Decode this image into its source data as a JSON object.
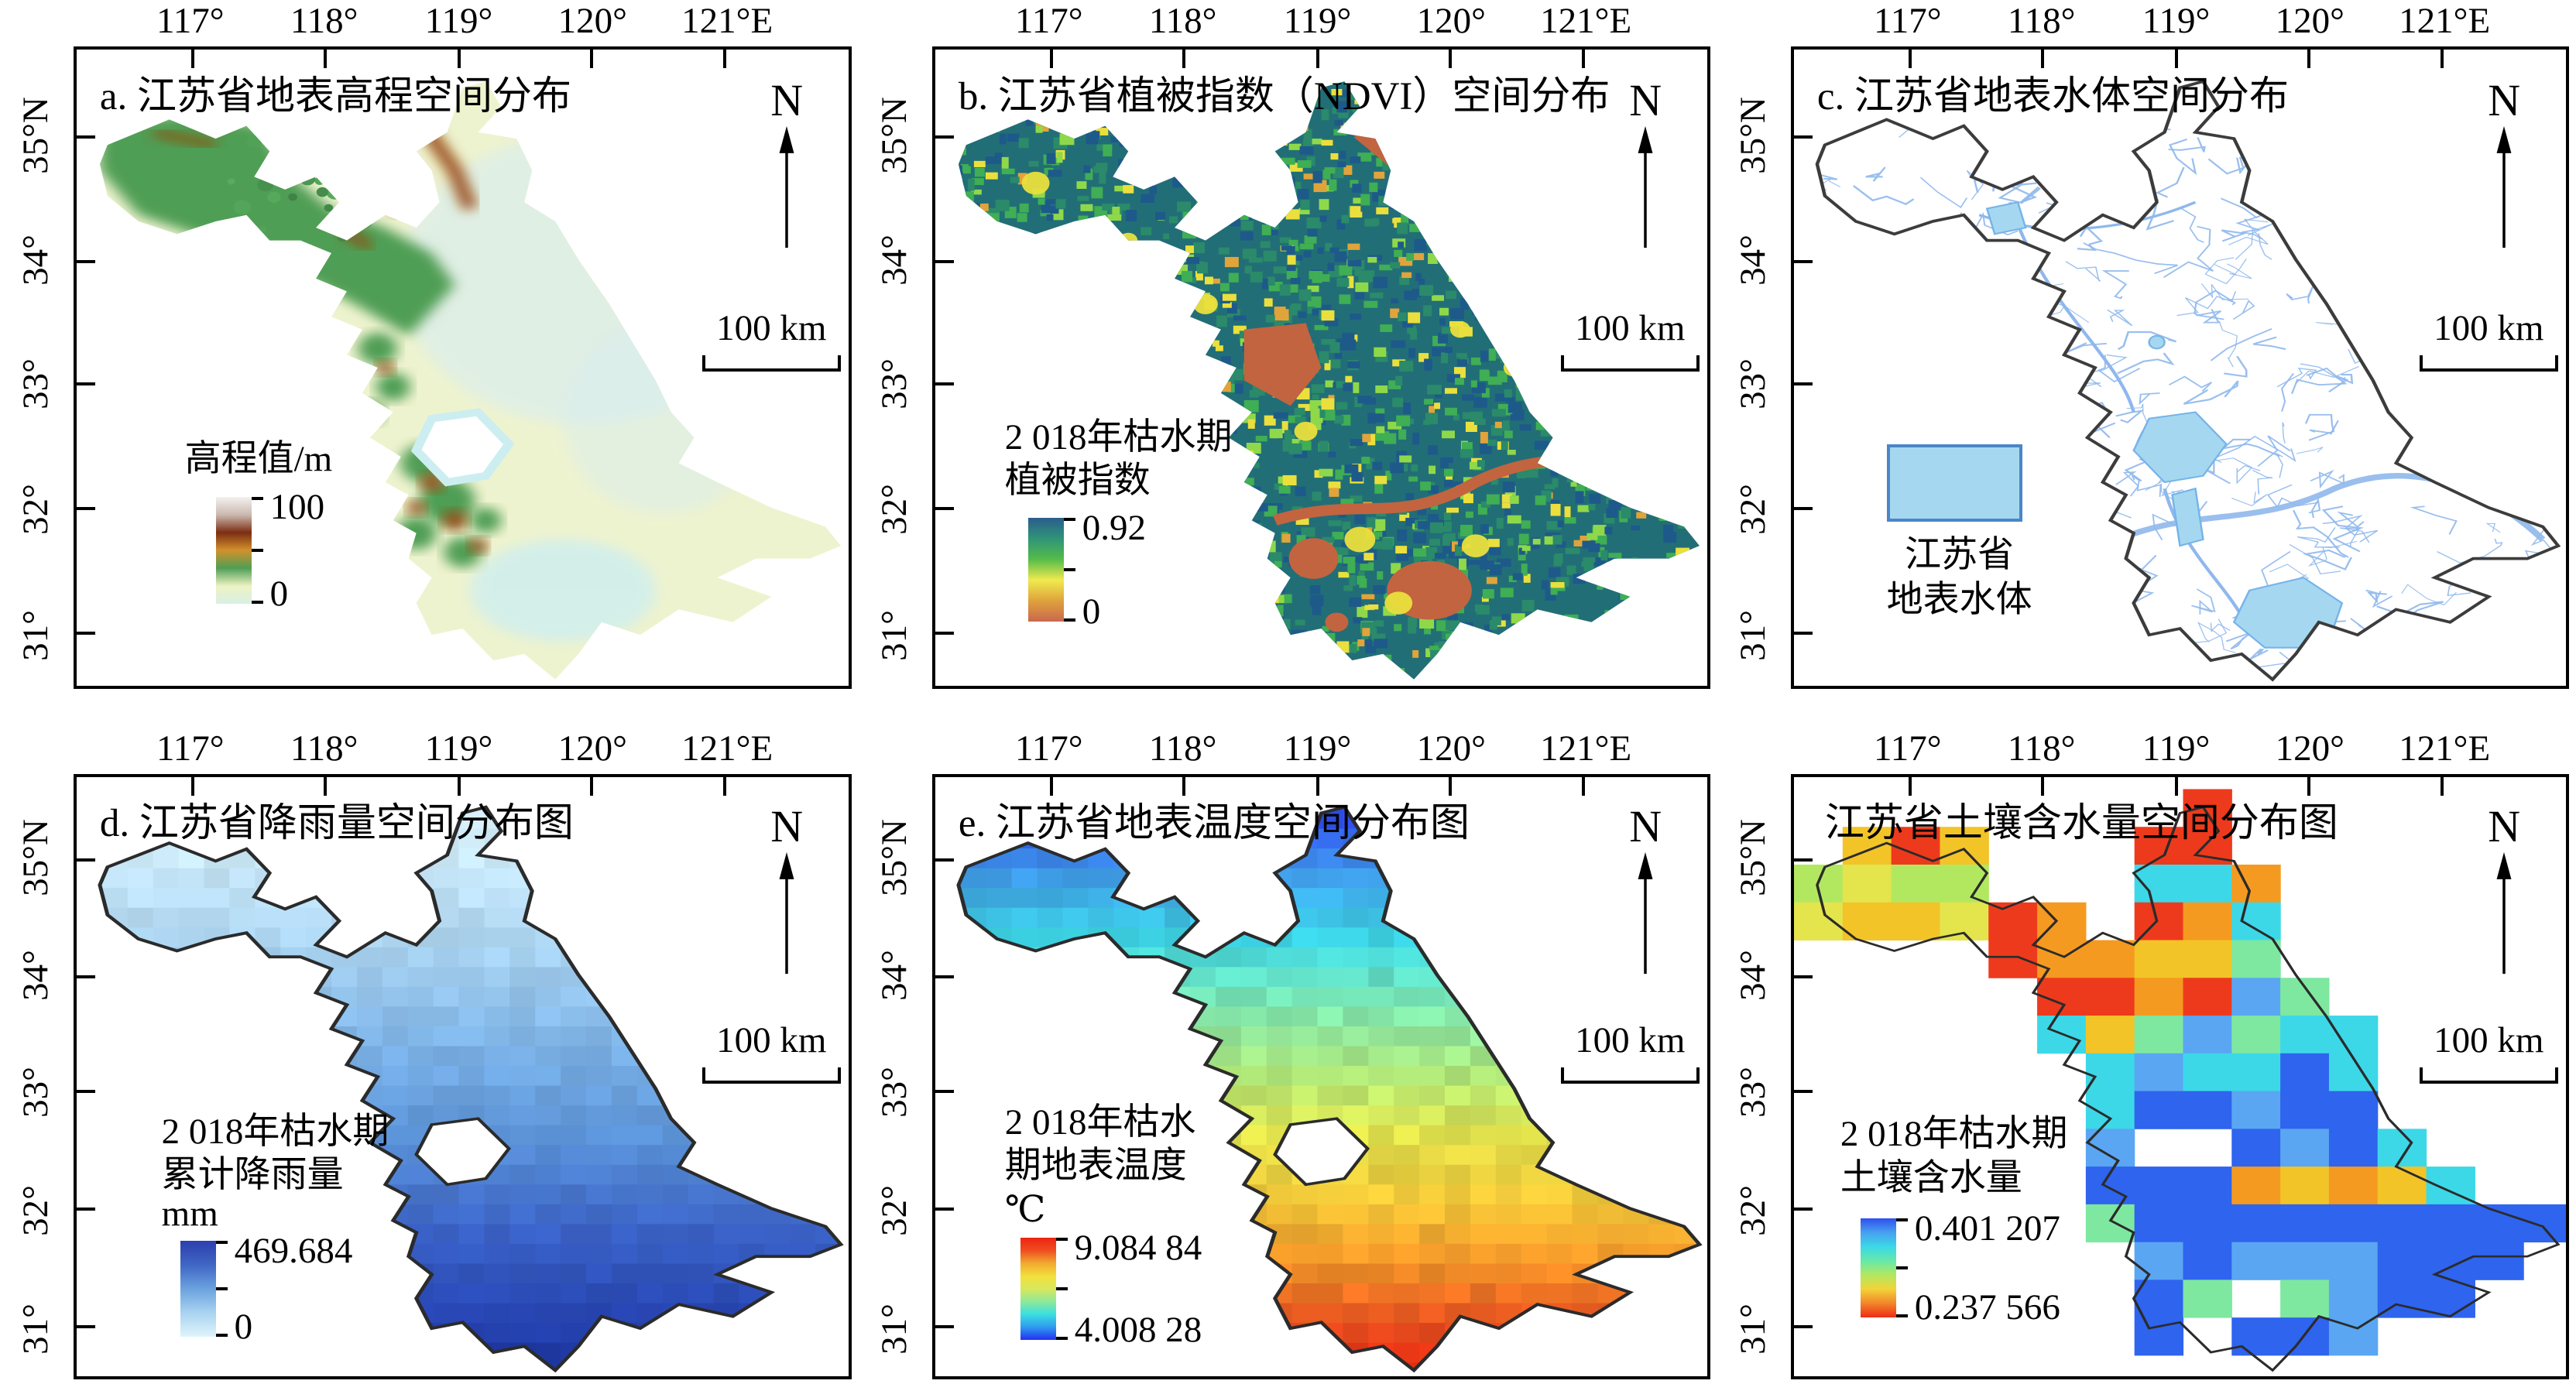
{
  "axes": {
    "top_labels": [
      "117°",
      "118°",
      "119°",
      "120°",
      "121°E"
    ],
    "left_labels": [
      "35°N",
      "34°",
      "33°",
      "32°",
      "31°"
    ]
  },
  "decor": {
    "north_label": "N",
    "scale_label": "100 km"
  },
  "panels": [
    {
      "key": "a",
      "title": "a. 江苏省地表高程空间分布",
      "legend": {
        "title_lines": [
          "高程值/m"
        ],
        "max": "100",
        "min": "0",
        "colorbar": [
          "#d8f0e4",
          "#edf2c2",
          "#4f9e55",
          "#d2912c",
          "#7c2d12",
          "#cbb9b0",
          "#f4f1ef"
        ]
      },
      "map": {
        "type": "elevation",
        "base": "#eef3cf",
        "plain_tint": "#d8edf2",
        "hill_green": "#4f9e55",
        "ridge_brown": "#96450f",
        "lake": "#cdeef0"
      }
    },
    {
      "key": "b",
      "title": "b. 江苏省植被指数（NDVI）空间分布",
      "legend": {
        "title_lines": [
          "2 018年枯水期",
          "植被指数"
        ],
        "max": "0.92",
        "min": "0",
        "colorbar": [
          "#c9684e",
          "#dfa23c",
          "#f0ea4e",
          "#55bc4a",
          "#2f9478",
          "#2b5d8c"
        ]
      },
      "map": {
        "type": "ndvi",
        "base": "#226e77",
        "noise": [
          "#1d5a8a",
          "#2a8a6a",
          "#3fae54",
          "#8fd84a",
          "#eadf3d",
          "#e0a43a"
        ],
        "water": "#c2643f",
        "city": "#eadf3d"
      }
    },
    {
      "key": "c",
      "title": "c. 江苏省地表水体空间分布",
      "legend": {
        "swatch_lines": [
          "江苏省",
          "地表水体"
        ],
        "swatch_fill": "#a5d8f0",
        "swatch_border": "#4a86c8"
      },
      "map": {
        "type": "water",
        "outline": "#3c3c3c",
        "lake": "#a5d8f0",
        "stream": "#8fb8ec"
      }
    },
    {
      "key": "d",
      "title": "d. 江苏省降雨量空间分布图",
      "legend": {
        "title_lines": [
          "2 018年枯水期",
          "累计降雨量",
          "mm"
        ],
        "max": "469.684",
        "min": "0",
        "colorbar": [
          "#dff4fb",
          "#a9d3f0",
          "#6ba2de",
          "#3f66c4",
          "#2c3fae"
        ]
      },
      "map": {
        "type": "grid",
        "cell": 3.3,
        "jitter": 5,
        "outline": "#2b2b2b",
        "stops": [
          [
            8,
            "#d6effa"
          ],
          [
            28,
            "#abd4f0"
          ],
          [
            45,
            "#7cb2e6"
          ],
          [
            60,
            "#5b93d8"
          ],
          [
            76,
            "#3a62c6"
          ],
          [
            90,
            "#2745b2"
          ],
          [
            98,
            "#1d35a0"
          ]
        ]
      }
    },
    {
      "key": "e",
      "title": "e. 江苏省地表温度空间分布图",
      "legend": {
        "title_lines": [
          "2 018年枯水",
          "期地表温度",
          "℃"
        ],
        "max": "9.084 84",
        "min": "4.008 28",
        "colorbar": [
          "#2430f0",
          "#2e9bf0",
          "#3adfe0",
          "#8fe89a",
          "#d8e85c",
          "#f2e03c",
          "#f2a930",
          "#ee4e20",
          "#ec2412"
        ]
      },
      "map": {
        "type": "grid",
        "cell": 3.3,
        "jitter": 7,
        "outline": "#2b2b2b",
        "stops": [
          [
            6,
            "#2c44e8"
          ],
          [
            16,
            "#3f9ae8"
          ],
          [
            27,
            "#3cd4e4"
          ],
          [
            38,
            "#7ee8b2"
          ],
          [
            50,
            "#b2e878"
          ],
          [
            60,
            "#e4e44c"
          ],
          [
            72,
            "#f2c236"
          ],
          [
            82,
            "#f29028"
          ],
          [
            91,
            "#ea5220"
          ],
          [
            98,
            "#e42c12"
          ]
        ]
      }
    },
    {
      "key": "f",
      "title": "江苏省土壤含水量空间分布图",
      "legend": {
        "title_lines": [
          "2 018年枯水期",
          "土壤含水量"
        ],
        "max": "0.401 207",
        "min": "0.237 566",
        "colorbar": [
          "#ee2c16",
          "#f2862a",
          "#f2d338",
          "#b2e860",
          "#66e8a8",
          "#3cd8e8",
          "#48a0f0",
          "#2e50ee"
        ]
      },
      "map": {
        "type": "soil",
        "cell": 6.3,
        "outline": "#2b2b2b",
        "colors": {
          "red": "#ee3a1c",
          "orange": "#f59a20",
          "amber": "#f2c428",
          "yellow": "#e4e44c",
          "ygreen": "#b2e860",
          "green": "#7ee8a0",
          "cyan": "#3cd8e8",
          "sky": "#5aa6f2",
          "blue": "#2e64ee",
          "deep": "#1630e0"
        }
      }
    }
  ]
}
